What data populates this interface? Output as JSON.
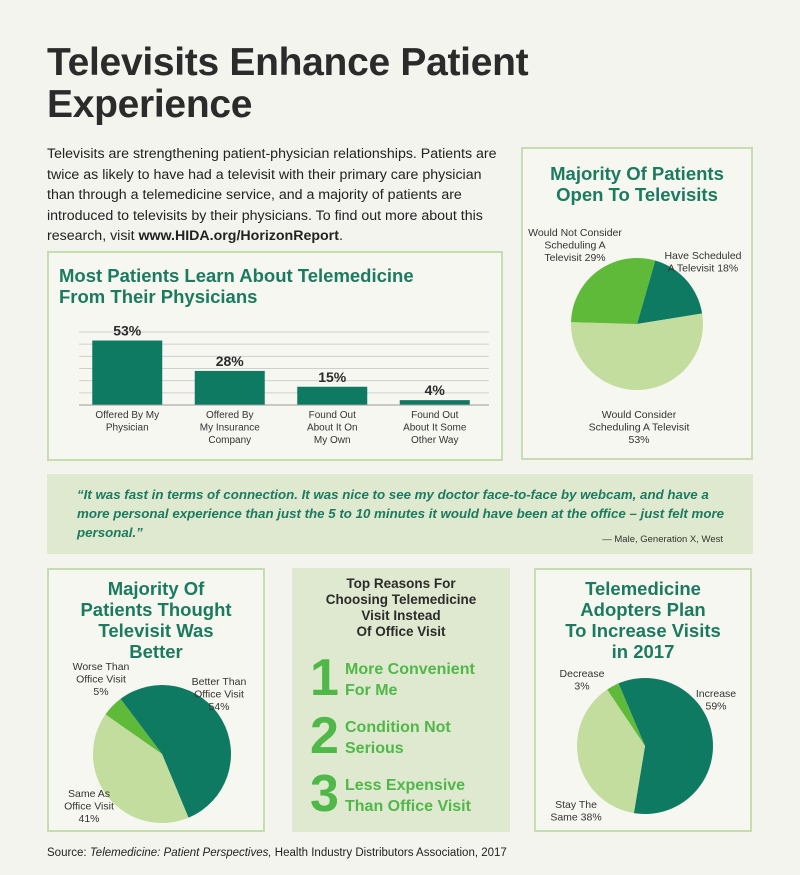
{
  "title": [
    "Televisits Enhance Patient",
    "Experience"
  ],
  "intro": {
    "text": "Televisits are strengthening patient-physician relationships. Patients are twice as likely to have had a televisit with their primary care physician than through a telemedicine service, and a majority of patients are introduced to televisits by their physicians. To find out more about this research, visit ",
    "link": "www.HIDA.org/HorizonReport",
    "end": "."
  },
  "colors": {
    "dark_green": "#0f7a62",
    "mid_green": "#5fba3a",
    "light_green": "#c2dd9e",
    "title_green": "#1b7a5f"
  },
  "chart_data": [
    {
      "type": "bar",
      "title": [
        "Most Patients Learn About Telemedicine",
        "From Their Physicians"
      ],
      "categories": [
        [
          "Offered By My",
          "Physician"
        ],
        [
          "Offered By",
          "My Insurance",
          "Company"
        ],
        [
          "Found Out",
          "About It On",
          "My Own"
        ],
        [
          "Found Out",
          "About It Some",
          "Other Way"
        ]
      ],
      "values": [
        53,
        28,
        15,
        4
      ],
      "value_labels": [
        "53%",
        "28%",
        "15%",
        "4%"
      ],
      "ylim": [
        0,
        60
      ],
      "grid": true
    },
    {
      "type": "pie",
      "title": [
        "Majority Of Patients",
        "Open To Televisits"
      ],
      "slices": [
        {
          "label": [
            "Have Scheduled",
            "A Televisit 18%"
          ],
          "value": 18,
          "color": "#0f7a62"
        },
        {
          "label": [
            "Would Consider",
            "Scheduling A Televisit",
            "53%"
          ],
          "value": 53,
          "color": "#c2dd9e"
        },
        {
          "label": [
            "Would Not Consider",
            "Scheduling A",
            "Televisit 29%"
          ],
          "value": 29,
          "color": "#5fba3a"
        }
      ]
    },
    {
      "type": "pie",
      "title": [
        "Majority Of",
        "Patients Thought",
        "Televisit Was",
        "Better"
      ],
      "slices": [
        {
          "label": [
            "Better Than",
            "Office Visit",
            "54%"
          ],
          "value": 54,
          "color": "#0f7a62"
        },
        {
          "label": [
            "Same As",
            "Office Visit",
            "41%"
          ],
          "value": 41,
          "color": "#c2dd9e"
        },
        {
          "label": [
            "Worse Than",
            "Office Visit",
            "5%"
          ],
          "value": 5,
          "color": "#5fba3a"
        }
      ]
    },
    {
      "type": "pie",
      "title": [
        "Telemedicine",
        "Adopters Plan",
        "To Increase Visits",
        "in 2017"
      ],
      "slices": [
        {
          "label": [
            "Increase",
            "59%"
          ],
          "value": 59,
          "color": "#0f7a62"
        },
        {
          "label": [
            "Stay The",
            "Same 38%"
          ],
          "value": 38,
          "color": "#c2dd9e"
        },
        {
          "label": [
            "Decrease",
            "3%"
          ],
          "value": 3,
          "color": "#5fba3a"
        }
      ]
    }
  ],
  "quote": {
    "text": "“It was fast in terms of connection. It was nice to see my doctor face-to-face by webcam, and have a more personal experience than just the 5 to 10 minutes it would have been at the office – just felt more personal.”",
    "attribution": "— Male, Generation X, West"
  },
  "reasons": {
    "title": [
      "Top Reasons For",
      "Choosing Telemedicine",
      "Visit Instead",
      "Of Office Visit"
    ],
    "items": [
      {
        "num": "1",
        "text": [
          "More Convenient",
          "For Me"
        ]
      },
      {
        "num": "2",
        "text": [
          "Condition Not",
          "Serious"
        ]
      },
      {
        "num": "3",
        "text": [
          "Less Expensive",
          "Than Office Visit"
        ]
      }
    ]
  },
  "source": {
    "prefix": "Source: ",
    "title": "Telemedicine: Patient Perspectives,",
    "rest": " Health Industry Distributors Association, 2017"
  }
}
